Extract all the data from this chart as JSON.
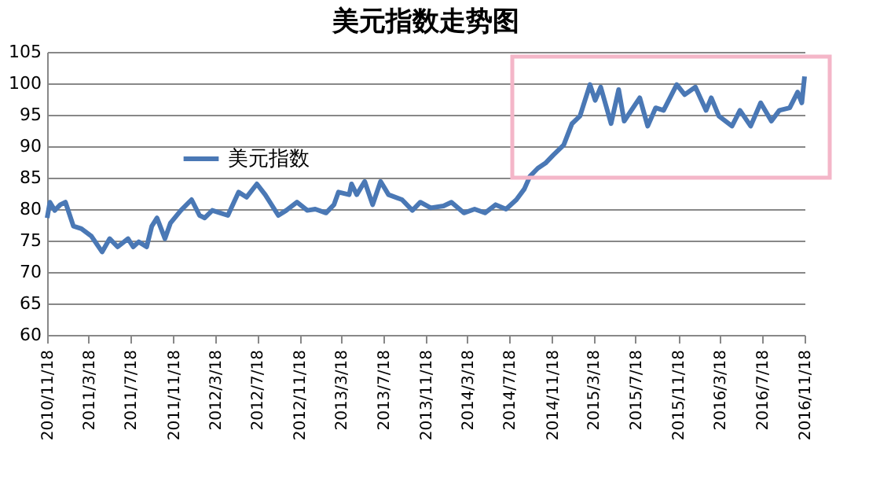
{
  "chart_data": {
    "type": "line",
    "title": "美元指数走势图",
    "legend": "top left",
    "grid": "y",
    "marker": "none",
    "line_style": "solid",
    "ylim": [
      60,
      105
    ],
    "yticks": [
      60,
      65,
      70,
      75,
      80,
      85,
      90,
      95,
      100,
      105
    ],
    "xlim": [
      "2010-11-18",
      "2016-11-18"
    ],
    "xticks": [
      {
        "value": "2010-11-18",
        "label": "2010/11/18"
      },
      {
        "value": "2011-03-18",
        "label": "2011/3/18"
      },
      {
        "value": "2011-07-18",
        "label": "2011/7/18"
      },
      {
        "value": "2011-11-18",
        "label": "2011/11/18"
      },
      {
        "value": "2012-03-18",
        "label": "2012/3/18"
      },
      {
        "value": "2012-07-18",
        "label": "2012/7/18"
      },
      {
        "value": "2012-11-18",
        "label": "2012/11/18"
      },
      {
        "value": "2013-03-18",
        "label": "2013/3/18"
      },
      {
        "value": "2013-07-18",
        "label": "2013/7/18"
      },
      {
        "value": "2013-11-18",
        "label": "2013/11/18"
      },
      {
        "value": "2014-03-18",
        "label": "2014/3/18"
      },
      {
        "value": "2014-07-18",
        "label": "2014/7/18"
      },
      {
        "value": "2014-11-18",
        "label": "2014/11/18"
      },
      {
        "value": "2015-03-18",
        "label": "2015/3/18"
      },
      {
        "value": "2015-07-18",
        "label": "2015/7/18"
      },
      {
        "value": "2015-11-18",
        "label": "2015/11/18"
      },
      {
        "value": "2016-03-18",
        "label": "2016/3/18"
      },
      {
        "value": "2016-07-18",
        "label": "2016/7/18"
      },
      {
        "value": "2016-11-18",
        "label": "2016/11/18"
      }
    ],
    "x": [
      "2010-11-18",
      "2010-11-26",
      "2010-12-10",
      "2010-12-26",
      "2011-01-10",
      "2011-02-02",
      "2011-02-25",
      "2011-03-26",
      "2011-04-26",
      "2011-05-18",
      "2011-06-10",
      "2011-07-10",
      "2011-07-25",
      "2011-08-10",
      "2011-09-02",
      "2011-09-17",
      "2011-10-02",
      "2011-10-25",
      "2011-11-10",
      "2011-12-10",
      "2012-01-10",
      "2012-02-02",
      "2012-02-17",
      "2012-03-10",
      "2012-04-02",
      "2012-04-24",
      "2012-05-25",
      "2012-06-17",
      "2012-07-17",
      "2012-08-10",
      "2012-09-17",
      "2012-10-10",
      "2012-11-10",
      "2012-12-10",
      "2013-01-02",
      "2013-02-02",
      "2013-02-25",
      "2013-03-10",
      "2013-04-10",
      "2013-04-17",
      "2013-05-02",
      "2013-05-25",
      "2013-06-17",
      "2013-07-10",
      "2013-08-02",
      "2013-09-10",
      "2013-10-10",
      "2013-11-02",
      "2013-12-02",
      "2014-01-08",
      "2014-01-31",
      "2014-03-08",
      "2014-04-08",
      "2014-05-08",
      "2014-06-08",
      "2014-07-08",
      "2014-08-07",
      "2014-08-30",
      "2014-09-15",
      "2014-10-08",
      "2014-10-30",
      "2014-11-22",
      "2014-12-22",
      "2015-01-15",
      "2015-02-07",
      "2015-03-08",
      "2015-03-23",
      "2015-04-08",
      "2015-05-08",
      "2015-05-30",
      "2015-06-15",
      "2015-07-30",
      "2015-08-22",
      "2015-09-14",
      "2015-10-07",
      "2015-11-14",
      "2015-12-07",
      "2016-01-07",
      "2016-02-07",
      "2016-02-22",
      "2016-03-15",
      "2016-04-22",
      "2016-05-15",
      "2016-06-15",
      "2016-07-14",
      "2016-08-14",
      "2016-09-06",
      "2016-10-06",
      "2016-10-29",
      "2016-11-10",
      "2016-11-18"
    ],
    "series": [
      {
        "name": "美元指数",
        "color": "#4a78b5",
        "values": [
          78.6,
          81.1,
          79.8,
          80.7,
          81.1,
          77.3,
          76.9,
          75.7,
          73.2,
          75.3,
          74.0,
          75.3,
          74.0,
          74.8,
          74.0,
          77.3,
          78.6,
          75.3,
          77.8,
          79.8,
          81.5,
          79.0,
          78.6,
          79.8,
          79.4,
          79.0,
          82.7,
          81.9,
          84.0,
          82.3,
          79.0,
          79.8,
          81.1,
          79.8,
          80.0,
          79.4,
          80.7,
          82.7,
          82.3,
          84.0,
          82.3,
          84.4,
          80.7,
          84.4,
          82.3,
          81.5,
          79.8,
          81.1,
          80.2,
          80.5,
          81.1,
          79.4,
          80.0,
          79.4,
          80.7,
          80.0,
          81.5,
          83.2,
          85.2,
          86.5,
          87.3,
          88.6,
          90.2,
          93.6,
          94.8,
          99.8,
          97.3,
          99.4,
          93.6,
          99.0,
          94.0,
          97.7,
          93.2,
          96.1,
          95.7,
          99.8,
          98.2,
          99.4,
          95.7,
          97.7,
          94.8,
          93.2,
          95.7,
          93.2,
          96.9,
          94.0,
          95.7,
          96.1,
          98.6,
          96.9,
          101.1
        ]
      }
    ]
  }
}
